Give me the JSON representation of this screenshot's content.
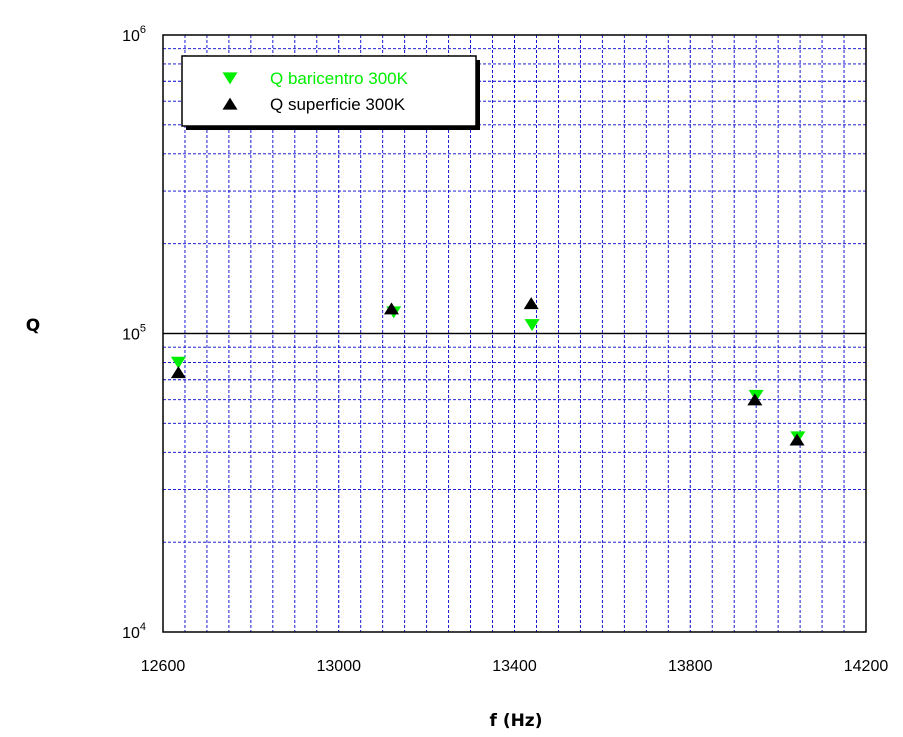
{
  "chart_data": {
    "type": "scatter",
    "xlabel": "f (Hz)",
    "ylabel": "Q",
    "xlim": [
      12600,
      14200
    ],
    "ylim": [
      10000,
      1000000
    ],
    "y_scale": "log",
    "x_ticks": [
      "12600",
      "13000",
      "13400",
      "13800",
      "14200"
    ],
    "y_ticks": [
      {
        "base": "10",
        "exp": "4"
      },
      {
        "base": "10",
        "exp": "5"
      },
      {
        "base": "10",
        "exp": "6"
      }
    ],
    "grid": true,
    "legend_position": "top-left",
    "series": [
      {
        "name": "Q baricentro 300K",
        "marker": "triangle-down",
        "color": "#00ee00",
        "x": [
          12635,
          13125,
          13440,
          13950,
          14045
        ],
        "y": [
          80000,
          118000,
          107000,
          62000,
          45000
        ]
      },
      {
        "name": "Q superficie 300K",
        "marker": "triangle-up",
        "color": "#000000",
        "x": [
          12635,
          13120,
          13438,
          13947,
          14043
        ],
        "y": [
          74000,
          121000,
          126000,
          60000,
          44000
        ]
      }
    ]
  },
  "colors": {
    "grid": "#0000cc",
    "axis": "#000000",
    "background": "#ffffff"
  }
}
